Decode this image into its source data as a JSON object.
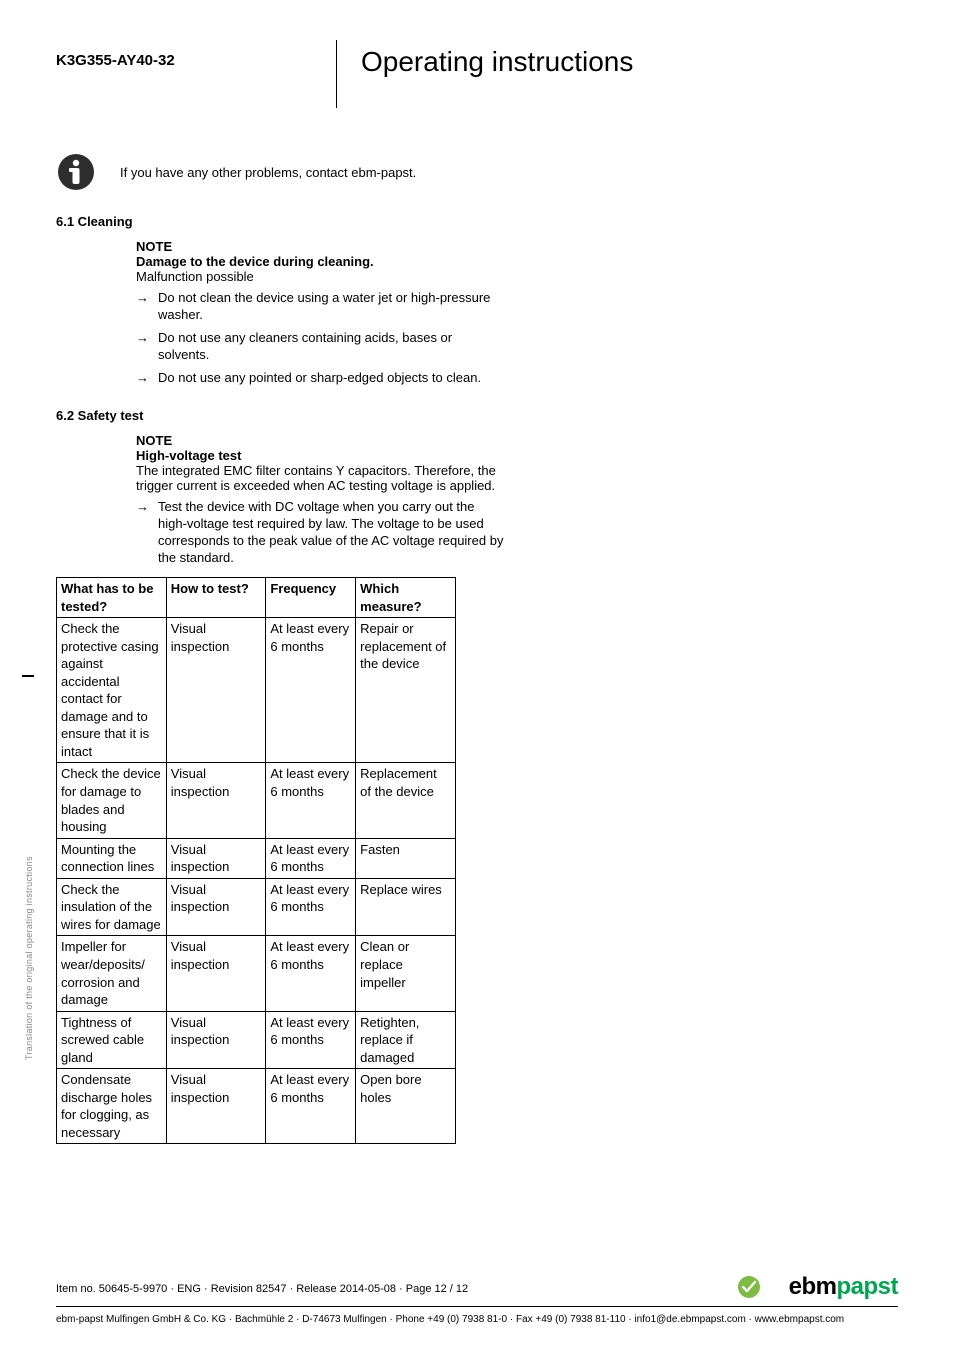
{
  "header": {
    "model": "K3G355-AY40-32",
    "title": "Operating instructions"
  },
  "info_note": "If you have any other problems, contact ebm-papst.",
  "section61": {
    "heading": "6.1 Cleaning",
    "note_label": "NOTE",
    "note_title": "Damage to the device during cleaning.",
    "note_body": "Malfunction possible",
    "bullets": [
      "Do not clean the device using a water jet or high-pressure washer.",
      "Do not use any cleaners containing acids, bases or solvents.",
      "Do not use any pointed or sharp-edged objects to clean."
    ]
  },
  "section62": {
    "heading": "6.2 Safety test",
    "note_label": "NOTE",
    "note_title": "High-voltage test",
    "note_body": "The integrated EMC filter contains Y capacitors. Therefore, the trigger current is exceeded when AC testing voltage is applied.",
    "bullets": [
      "Test the device with DC voltage when you carry out the high-voltage test required by law. The voltage to be used corresponds to the peak value of the AC voltage required by the standard."
    ]
  },
  "table": {
    "columns": [
      "What has to be tested?",
      "How to test?",
      "Frequency",
      "Which measure?"
    ],
    "rows": [
      [
        "Check the protective casing against accidental contact for damage and to ensure that it is intact",
        "Visual inspection",
        "At least every 6 months",
        "Repair or replacement of the device"
      ],
      [
        "Check the device for damage to blades and housing",
        "Visual inspection",
        "At least every 6 months",
        "Replacement of the device"
      ],
      [
        "Mounting the connection lines",
        "Visual inspection",
        "At least every 6 months",
        "Fasten"
      ],
      [
        "Check the insulation of the wires for damage",
        "Visual inspection",
        "At least every 6 months",
        "Replace wires"
      ],
      [
        "Impeller for wear/deposits/ corrosion and damage",
        "Visual inspection",
        "At least every 6 months",
        "Clean or replace impeller"
      ],
      [
        "Tightness of screwed cable gland",
        "Visual inspection",
        "At least every 6 months",
        "Retighten, replace if damaged"
      ],
      [
        "Condensate discharge holes for clogging, as necessary",
        "Visual inspection",
        "At least every 6 months",
        "Open bore holes"
      ]
    ]
  },
  "side_text": "Translation of the original operating instructions",
  "footer": {
    "line1": "Item no. 50645-5-9970 · ENG · Revision 82547 · Release 2014-05-08 · Page 12 / 12",
    "line2": "ebm-papst Mulfingen GmbH & Co. KG · Bachmühle 2 · D-74673 Mulfingen · Phone +49 (0) 7938 81-0 · Fax +49 (0) 7938 81-110 · info1@de.ebmpapst.com · www.ebmpapst.com",
    "logo_part1": "ebm",
    "logo_part2": "papst"
  },
  "colors": {
    "text": "#000000",
    "bg": "#ffffff",
    "green": "#00a651",
    "side_text": "#888888",
    "info_icon_fill": "#2e2e2e",
    "badge_fill": "#7fba42"
  }
}
